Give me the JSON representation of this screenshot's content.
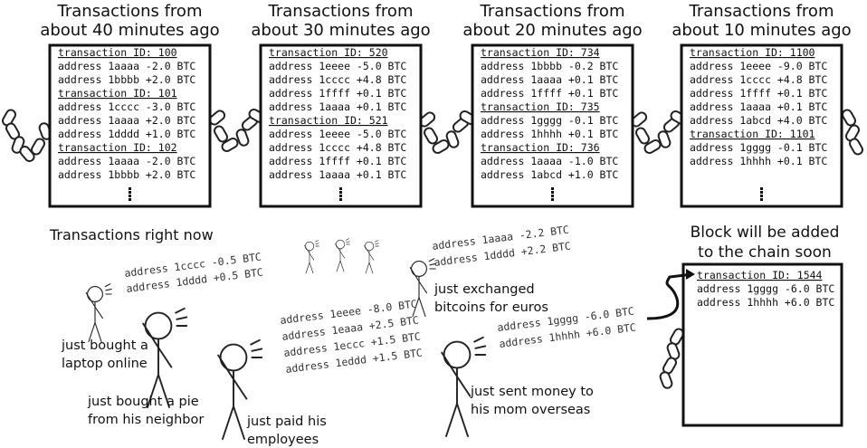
{
  "blocks": [
    {
      "title": [
        "Transactions from",
        "about 40 minutes ago"
      ],
      "transactions": [
        {
          "id": "transaction ID: 100",
          "lines": [
            "address 1aaaa -2.0 BTC",
            "address 1bbbb +2.0 BTC"
          ]
        },
        {
          "id": "transaction ID: 101",
          "lines": [
            "address 1cccc -3.0 BTC",
            "address 1aaaa +2.0 BTC",
            "address 1dddd +1.0 BTC"
          ]
        },
        {
          "id": "transaction ID: 102",
          "lines": [
            "address 1aaaa -2.0 BTC",
            "address 1bbbb +2.0 BTC"
          ]
        }
      ]
    },
    {
      "title": [
        "Transactions from",
        "about 30 minutes ago"
      ],
      "transactions": [
        {
          "id": "transaction ID: 520",
          "lines": [
            "address 1eeee -5.0 BTC",
            "address 1cccc +4.8 BTC",
            "address 1ffff +0.1 BTC",
            "address 1aaaa +0.1 BTC"
          ]
        },
        {
          "id": "transaction ID: 521",
          "lines": [
            "address 1eeee -5.0 BTC",
            "address 1cccc +4.8 BTC",
            "address 1ffff +0.1 BTC",
            "address 1aaaa +0.1 BTC"
          ]
        }
      ]
    },
    {
      "title": [
        "Transactions from",
        "about 20 minutes ago"
      ],
      "transactions": [
        {
          "id": "transaction ID: 734",
          "lines": [
            "address 1bbbb -0.2 BTC",
            "address 1aaaa +0.1 BTC",
            "address 1ffff +0.1 BTC"
          ]
        },
        {
          "id": "transaction ID: 735",
          "lines": [
            "address 1gggg -0.1 BTC",
            "address 1hhhh +0.1 BTC"
          ]
        },
        {
          "id": "transaction ID: 736",
          "lines": [
            "address 1aaaa -1.0 BTC",
            "address 1abcd +1.0 BTC"
          ]
        }
      ]
    },
    {
      "title": [
        "Transactions from",
        "about 10 minutes ago"
      ],
      "transactions": [
        {
          "id": "transaction ID: 1100",
          "lines": [
            "address 1eeee -9.0 BTC",
            "address 1cccc +4.8 BTC",
            "address 1ffff +0.1 BTC",
            "address 1aaaa +0.1 BTC",
            "address 1abcd +4.0 BTC"
          ]
        },
        {
          "id": "transaction ID: 1101",
          "lines": [
            "address 1gggg -0.1 BTC",
            "address 1hhhh +0.1 BTC"
          ]
        }
      ]
    }
  ],
  "now": {
    "title": "Transactions right now",
    "groups": [
      {
        "lines": [
          "address 1cccc -0.5 BTC",
          "address 1dddd +0.5 BTC"
        ],
        "caption": [
          "just bought a",
          "laptop online"
        ]
      },
      {
        "caption": [
          "just bought a pie",
          "from his neighbor"
        ]
      },
      {
        "lines": [
          "address 1eeee -8.0 BTC",
          "address 1eaaa +2.5 BTC",
          "address 1eccc +1.5 BTC",
          "address 1eddd +1.5 BTC"
        ],
        "caption": [
          "just paid his",
          "employees"
        ]
      },
      {
        "lines": [
          "address 1aaaa -2.2 BTC",
          "address 1dddd +2.2 BTC"
        ],
        "caption": [
          "just exchanged",
          "bitcoins for euros"
        ]
      },
      {
        "lines": [
          "address 1gggg -6.0 BTC",
          "address 1hhhh +6.0 BTC"
        ],
        "caption": [
          "just sent money to",
          "his mom overseas"
        ]
      }
    ]
  },
  "pending": {
    "title": [
      "Block will be added",
      "to the chain soon"
    ],
    "transaction": {
      "id": "transaction ID: 1544",
      "lines": [
        "address 1gggg -6.0 BTC",
        "address 1hhhh +6.0 BTC"
      ]
    }
  }
}
